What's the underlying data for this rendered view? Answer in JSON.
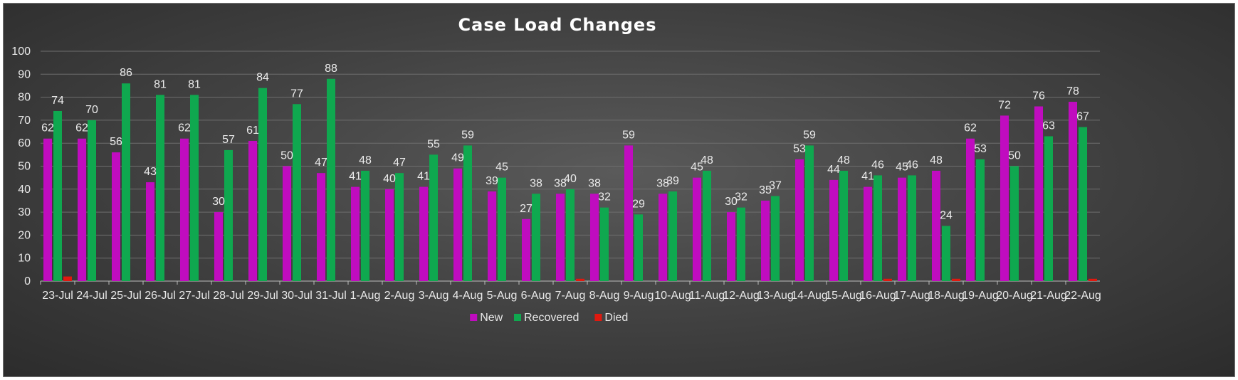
{
  "chart_data": {
    "type": "bar",
    "title": "Case Load Changes",
    "xlabel": "",
    "ylabel": "",
    "ylim": [
      0,
      100
    ],
    "yticks": [
      0,
      10,
      20,
      30,
      40,
      50,
      60,
      70,
      80,
      90,
      100
    ],
    "grid": true,
    "legend_position": "bottom",
    "categories": [
      "23-Jul",
      "24-Jul",
      "25-Jul",
      "26-Jul",
      "27-Jul",
      "28-Jul",
      "29-Jul",
      "30-Jul",
      "31-Jul",
      "1-Aug",
      "2-Aug",
      "3-Aug",
      "4-Aug",
      "5-Aug",
      "6-Aug",
      "7-Aug",
      "8-Aug",
      "9-Aug",
      "10-Aug",
      "11-Aug",
      "12-Aug",
      "13-Aug",
      "14-Aug",
      "15-Aug",
      "16-Aug",
      "17-Aug",
      "18-Aug",
      "19-Aug",
      "20-Aug",
      "21-Aug",
      "22-Aug"
    ],
    "series": [
      {
        "name": "New",
        "color": "#c00cbf",
        "values": [
          62,
          62,
          56,
          43,
          62,
          30,
          61,
          50,
          47,
          41,
          40,
          41,
          49,
          39,
          27,
          38,
          38,
          59,
          38,
          45,
          30,
          35,
          53,
          44,
          41,
          45,
          48,
          62,
          72,
          76,
          78
        ],
        "labels": [
          "62",
          "62",
          "56",
          "43",
          "62",
          "30",
          "61",
          "50",
          "47",
          "41",
          "40",
          "41",
          "49",
          "39",
          "27",
          "38",
          "38",
          "59",
          "38",
          "45",
          "30",
          "35",
          "53",
          "44",
          "41",
          "45",
          "48",
          "62",
          "72",
          "76",
          "78"
        ]
      },
      {
        "name": "Recovered",
        "color": "#0fa84f",
        "values": [
          74,
          70,
          86,
          81,
          81,
          57,
          84,
          77,
          88,
          48,
          47,
          55,
          59,
          45,
          38,
          40,
          32,
          29,
          39,
          48,
          32,
          37,
          59,
          48,
          46,
          46,
          24,
          53,
          50,
          63,
          67
        ],
        "labels": [
          "74",
          "70",
          "86",
          "81",
          "81",
          "57",
          "84",
          "77",
          "88",
          "48",
          "47",
          "55",
          "59",
          "45",
          "38",
          "40",
          "32",
          "29",
          "39",
          "48",
          "32",
          "37",
          "59",
          "48",
          "46",
          "46",
          "24",
          "53",
          "50",
          "63",
          "67"
        ]
      },
      {
        "name": "Died",
        "color": "#e0190f",
        "values": [
          2,
          0,
          0,
          0,
          0,
          0,
          0,
          0,
          0,
          0,
          0,
          0,
          0,
          0,
          0,
          1,
          0,
          0,
          0,
          0,
          0,
          0,
          0,
          0,
          1,
          0,
          1,
          0,
          0,
          0,
          1
        ],
        "labels": [
          "",
          "",
          "",
          "",
          "",
          "",
          "",
          "",
          "",
          "",
          "",
          "",
          "",
          "",
          "",
          "",
          "",
          "",
          "",
          "",
          "",
          "",
          "",
          "",
          "",
          "",
          "",
          "",
          "",
          "",
          ""
        ]
      }
    ]
  }
}
